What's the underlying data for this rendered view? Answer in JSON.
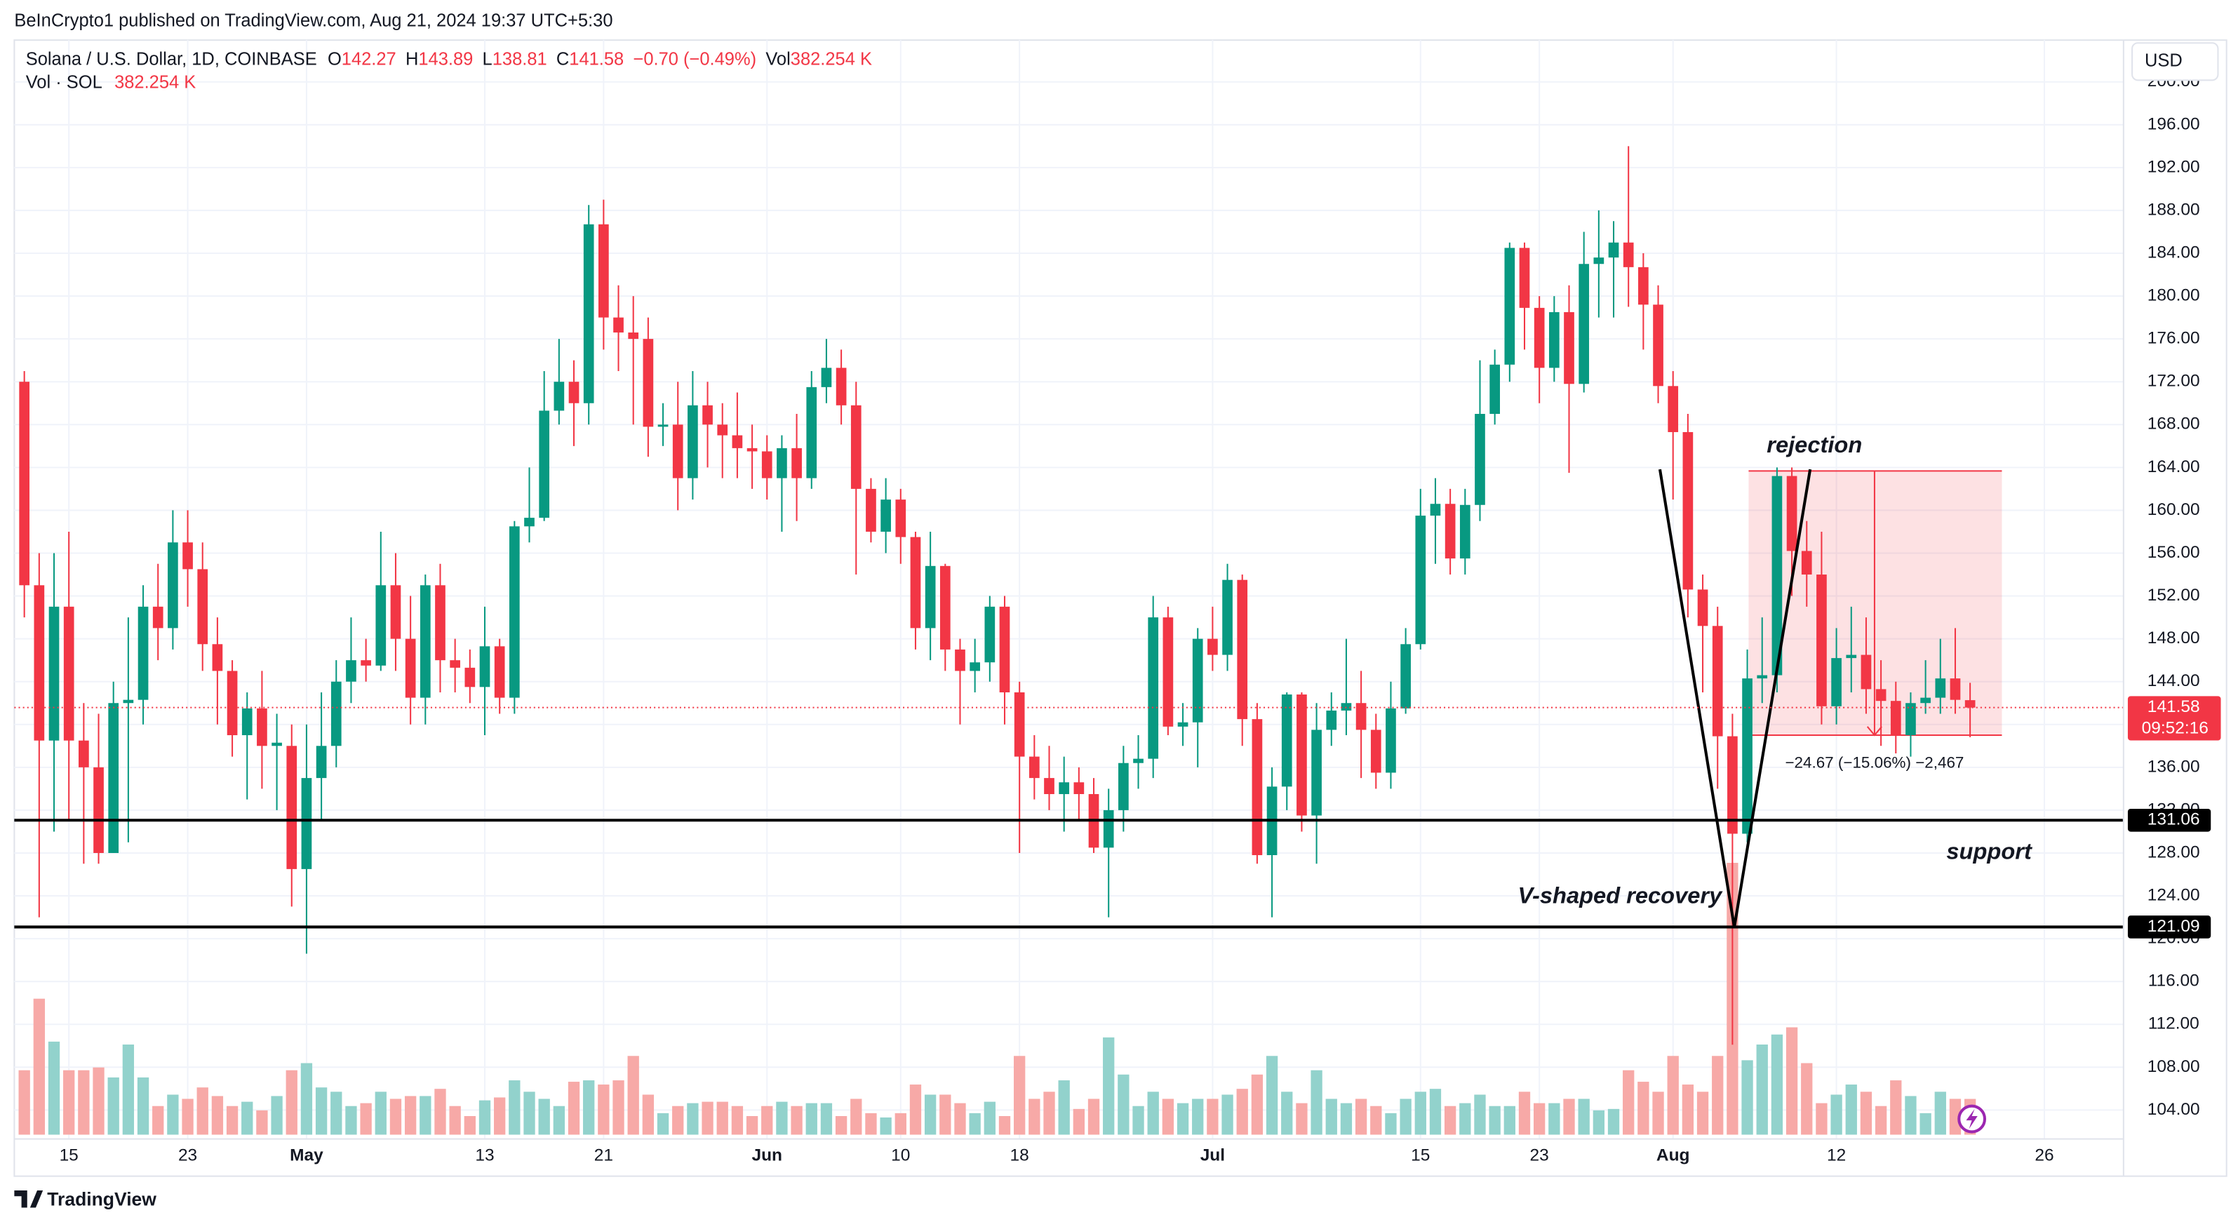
{
  "header": {
    "published": "BeInCrypto1 published on TradingView.com, Aug 21, 2024 19:37 UTC+5:30"
  },
  "chart_data": {
    "type": "candlestick",
    "title": "Solana / U.S. Dollar, 1D, COINBASE",
    "legend_labels": {
      "open": "O",
      "high": "H",
      "low": "L",
      "close": "C",
      "change": "−0.70 (−0.49%)",
      "vol": "Vol",
      "vol_value": "382.254 K",
      "vol_series": "Vol · SOL"
    },
    "currency": "USD",
    "categories": [
      null,
      null,
      null,
      "15",
      null,
      null,
      null,
      null,
      null,
      null,
      null,
      "23",
      null,
      null,
      null,
      null,
      null,
      null,
      null,
      "May",
      null,
      null,
      null,
      null,
      null,
      null,
      null,
      null,
      null,
      null,
      null,
      "13",
      null,
      null,
      null,
      null,
      null,
      null,
      null,
      "21",
      null,
      null,
      null,
      null,
      null,
      null,
      null,
      null,
      null,
      null,
      "Jun",
      null,
      null,
      null,
      null,
      null,
      null,
      null,
      null,
      "10",
      null,
      null,
      null,
      null,
      null,
      null,
      null,
      "18",
      null,
      null,
      null,
      null,
      null,
      null,
      null,
      null,
      null,
      null,
      null,
      null,
      "Jul",
      null,
      null,
      null,
      null,
      null,
      null,
      null,
      null,
      null,
      null,
      null,
      null,
      null,
      "15",
      null,
      null,
      null,
      null,
      null,
      null,
      null,
      "23",
      null,
      null,
      null,
      null,
      null,
      null,
      null,
      null,
      "Aug",
      null,
      null,
      null,
      null,
      null,
      null,
      null,
      null,
      null,
      null,
      "12",
      null,
      null,
      null,
      null,
      null,
      null,
      null,
      null,
      null,
      null,
      null,
      null,
      null,
      "26"
    ],
    "open": [
      172,
      153,
      138.5,
      151,
      138.5,
      136,
      128,
      142,
      142.3,
      151,
      149,
      157,
      154.5,
      147.5,
      145,
      139,
      141.5,
      138,
      138,
      126.5,
      135,
      138,
      144,
      146,
      145.5,
      153,
      148,
      142.5,
      153,
      146,
      145.3,
      143.5,
      147.3,
      142.5,
      158.5,
      159.3,
      169.3,
      172,
      170,
      186.7,
      178,
      176.6,
      176,
      167.8,
      168,
      163,
      169.8,
      168,
      167,
      165.8,
      165.5,
      163,
      165.8,
      163,
      171.5,
      173.3,
      169.8,
      162,
      158,
      161,
      157.5,
      149,
      154.8,
      147,
      145,
      145.8,
      151,
      143,
      137,
      135,
      133.5,
      134.6,
      133.5,
      128.5,
      132,
      136.4,
      136.8,
      150,
      139.8,
      140.2,
      148,
      146.5,
      153.5,
      140.5,
      127.8,
      134.2,
      142.8,
      131.5,
      139.5,
      141.3,
      142,
      139.5,
      135.5,
      141.5,
      147.5,
      159.5,
      160.6,
      155.5,
      160.5,
      169,
      173.6,
      184.5,
      178.9,
      173.3,
      178.5,
      171.8,
      183,
      183.6,
      185,
      182.7,
      179.2,
      171.6,
      167.3,
      152.6,
      149.2,
      138.9,
      129.8,
      144.3,
      144.6,
      163.2,
      156.2,
      154,
      141.7,
      146.2,
      146.5,
      143.3,
      142.2,
      139,
      142,
      142.5,
      144.3,
      142.27,
      null,
      null,
      null,
      null,
      null
    ],
    "high": [
      173,
      156,
      156,
      158,
      142,
      141,
      144,
      150,
      153,
      155,
      160,
      160,
      157,
      150,
      146,
      143,
      145,
      141,
      140,
      140,
      143,
      146,
      150,
      148,
      158,
      156,
      152,
      154,
      155,
      148,
      147,
      151,
      148,
      159,
      164,
      173,
      176,
      174,
      188.5,
      189,
      181,
      180,
      178,
      170,
      172,
      173,
      172,
      170,
      171,
      168,
      167,
      167,
      169,
      173,
      176,
      175,
      172,
      163,
      163,
      162,
      158,
      158,
      155,
      148,
      148,
      152,
      152,
      144,
      139,
      138,
      137,
      136,
      135,
      134,
      138,
      139,
      152,
      151,
      142,
      149,
      151,
      155,
      154,
      142,
      136,
      143,
      143,
      142,
      143,
      148,
      145,
      141,
      144,
      149,
      162,
      163,
      162,
      162,
      174,
      175,
      185,
      185,
      180,
      180,
      181,
      186,
      188,
      187,
      194,
      184,
      181,
      173,
      169,
      154,
      151,
      141,
      147,
      150,
      164,
      164,
      159,
      158,
      149,
      151,
      150,
      146,
      144,
      143,
      146,
      148,
      149,
      143.89,
      null,
      null,
      null,
      null,
      null
    ],
    "low": [
      150,
      122,
      130,
      131,
      127,
      127,
      128,
      129,
      140,
      146,
      147,
      151,
      145,
      140,
      137,
      133,
      134,
      132,
      123,
      118.6,
      131,
      136,
      142,
      144,
      145,
      145,
      140,
      140,
      143,
      143,
      142,
      139,
      141,
      141,
      157,
      159,
      168,
      166,
      168,
      175,
      173,
      168,
      165,
      166,
      160,
      161,
      164,
      163,
      163,
      162,
      161,
      158,
      159,
      162,
      170,
      168,
      154,
      157,
      156,
      155,
      147,
      146,
      145,
      140,
      143,
      144,
      140,
      128,
      133,
      132,
      130,
      131,
      128,
      122,
      130,
      134,
      135,
      139,
      138,
      136,
      145,
      145,
      138,
      127,
      122,
      132,
      130,
      127,
      138,
      139,
      135,
      134,
      134,
      141,
      147,
      155,
      154,
      154,
      159,
      168,
      172,
      175,
      170,
      172,
      163.5,
      171,
      178,
      178,
      179,
      175,
      170,
      161,
      150,
      143,
      134,
      110.1,
      129,
      142,
      143,
      152,
      151,
      140,
      140,
      143,
      141,
      138,
      137.3,
      137,
      141,
      141,
      141,
      138.81,
      null,
      null,
      null,
      null,
      null
    ],
    "close": [
      153,
      138.5,
      151,
      138.5,
      136,
      128,
      142,
      142.3,
      151,
      149,
      157,
      154.5,
      147.5,
      145,
      139,
      141.5,
      138,
      138.3,
      126.5,
      135,
      138,
      144,
      146,
      145.5,
      153,
      148,
      142.5,
      153,
      146,
      145.3,
      143.5,
      147.3,
      142.5,
      158.5,
      159.3,
      169.3,
      172,
      170,
      186.7,
      178,
      176.6,
      176,
      167.8,
      168,
      163,
      169.8,
      168,
      167,
      165.8,
      165.5,
      163,
      165.8,
      163,
      171.5,
      173.3,
      169.8,
      162,
      158,
      161,
      157.5,
      149,
      154.8,
      147,
      145,
      145.8,
      151,
      143,
      137,
      135,
      133.5,
      134.6,
      133.5,
      128.5,
      132,
      136.4,
      136.8,
      150,
      139.8,
      140.2,
      148,
      146.5,
      153.5,
      140.5,
      127.8,
      134.2,
      142.8,
      131.5,
      139.5,
      141.3,
      142,
      139.5,
      135.5,
      141.5,
      147.5,
      159.5,
      160.6,
      155.5,
      160.5,
      169,
      173.6,
      184.5,
      178.9,
      173.3,
      178.5,
      171.8,
      183,
      183.6,
      185,
      182.7,
      179.2,
      171.6,
      167.3,
      152.6,
      149.2,
      138.9,
      129.8,
      144.3,
      144.6,
      163.2,
      156.2,
      154,
      141.7,
      146.2,
      146.5,
      143.3,
      142.2,
      139,
      142,
      142.5,
      144.3,
      142.3,
      141.58,
      null,
      null,
      null,
      null,
      null
    ],
    "volume": [
      689,
      1454,
      995,
      689,
      689,
      719,
      612,
      964,
      612,
      306,
      428,
      383,
      505,
      413,
      306,
      352,
      260,
      413,
      689,
      765,
      505,
      459,
      306,
      337,
      459,
      383,
      413,
      413,
      490,
      306,
      199,
      367,
      398,
      581,
      459,
      383,
      306,
      566,
      581,
      536,
      581,
      842,
      428,
      230,
      306,
      337,
      352,
      352,
      306,
      199,
      306,
      352,
      306,
      337,
      337,
      199,
      383,
      230,
      184,
      230,
      536,
      428,
      428,
      337,
      230,
      352,
      199,
      842,
      383,
      459,
      581,
      275,
      383,
      1040,
      643,
      306,
      459,
      383,
      337,
      383,
      383,
      428,
      490,
      643,
      842,
      459,
      337,
      689,
      383,
      337,
      383,
      306,
      230,
      383,
      459,
      490,
      306,
      337,
      428,
      306,
      306,
      459,
      337,
      337,
      383,
      383,
      260,
      275,
      689,
      566,
      459,
      842,
      536,
      459,
      842,
      2907,
      796,
      964,
      1071,
      1148,
      765,
      337,
      428,
      536,
      459,
      306,
      581,
      413,
      230,
      459,
      383,
      382.254,
      null,
      null,
      null,
      null,
      null
    ],
    "up_color": "#089981",
    "down_color": "#f23645",
    "volume_up_color": "#92d2cc",
    "volume_down_color": "#f7a9a7",
    "ylim": [
      101.7,
      203.9
    ],
    "yticks": [
      {
        "value": 104,
        "label": "104.00"
      },
      {
        "value": 108,
        "label": "108.00"
      },
      {
        "value": 112,
        "label": "112.00"
      },
      {
        "value": 116,
        "label": "116.00"
      },
      {
        "value": 120,
        "label": "120.00"
      },
      {
        "value": 124,
        "label": "124.00"
      },
      {
        "value": 128,
        "label": "128.00"
      },
      {
        "value": 132,
        "label": "132.00"
      },
      {
        "value": 136,
        "label": "136.00"
      },
      {
        "value": 140,
        "label": "140.00"
      },
      {
        "value": 144,
        "label": "144.00"
      },
      {
        "value": 148,
        "label": "148.00"
      },
      {
        "value": 152,
        "label": "152.00"
      },
      {
        "value": 156,
        "label": "156.00"
      },
      {
        "value": 160,
        "label": "160.00"
      },
      {
        "value": 164,
        "label": "164.00"
      },
      {
        "value": 168,
        "label": "168.00"
      },
      {
        "value": 172,
        "label": "172.00"
      },
      {
        "value": 176,
        "label": "176.00"
      },
      {
        "value": 180,
        "label": "180.00"
      },
      {
        "value": 184,
        "label": "184.00"
      },
      {
        "value": 188,
        "label": "188.00"
      },
      {
        "value": 192,
        "label": "192.00"
      },
      {
        "value": 196,
        "label": "196.00"
      },
      {
        "value": 200,
        "label": "200.00"
      }
    ],
    "grid": true,
    "price_label": {
      "countdown": "09:52:16"
    },
    "hlines": [
      {
        "value": 131.06,
        "color": "#000000"
      },
      {
        "value": 121.09,
        "color": "#000000"
      }
    ],
    "annotations": [
      {
        "text": "rejection"
      },
      {
        "text": "support"
      },
      {
        "text": "V-shaped recovery"
      }
    ],
    "measure": {
      "from": 163.67,
      "to": 139.0,
      "label": "−24.67 (−15.06%) −2,467"
    }
  },
  "footer": {
    "brand": "TradingView"
  }
}
